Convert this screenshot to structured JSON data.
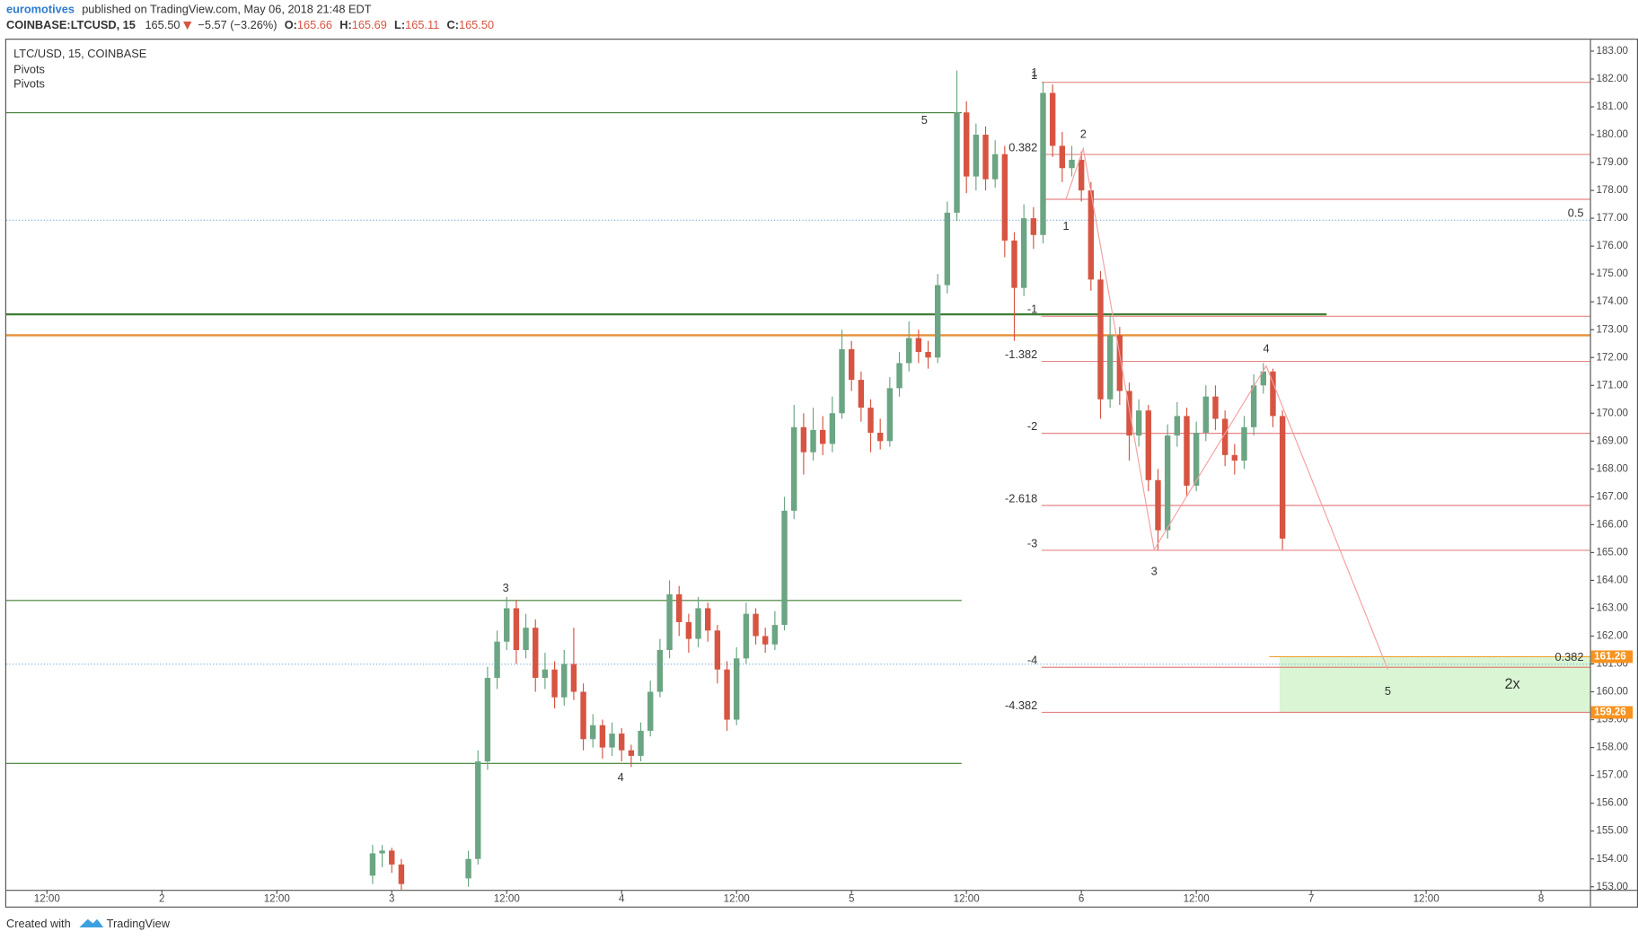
{
  "header": {
    "publisher": "euromotives",
    "published": "published on TradingView.com, May 06, 2018 21:48 EDT",
    "symbol": "COINBASE:LTCUSD, 15",
    "last": "165.50",
    "change": "−5.57 (−3.26%)",
    "open_label": "O:",
    "open": "165.66",
    "high_label": "H:",
    "high": "165.69",
    "low_label": "L:",
    "low": "165.11",
    "close_label": "C:",
    "close": "165.50"
  },
  "legend": {
    "title": "LTC/USD, 15, COINBASE",
    "studies": [
      "Pivots",
      "Pivots"
    ]
  },
  "footer": {
    "created": "Created with",
    "brand": "TradingView"
  },
  "chart_data": {
    "type": "candlestick",
    "up_color": "#6ba583",
    "down_color": "#d75442",
    "x": [
      22,
      23,
      24,
      25,
      32,
      33,
      34,
      35,
      36,
      37,
      38,
      39,
      40,
      41,
      42,
      43,
      44,
      45,
      46,
      47,
      48,
      49,
      50,
      51,
      52,
      53,
      54,
      55,
      56,
      57,
      58,
      59,
      60,
      61,
      62,
      63,
      64,
      65,
      66,
      67,
      68,
      69,
      70,
      71,
      72,
      73,
      74,
      75,
      76,
      77,
      78,
      79,
      80,
      81,
      82,
      83,
      84,
      85,
      86,
      87,
      88,
      89,
      90,
      91,
      92,
      93,
      94,
      95,
      96,
      97,
      98,
      99,
      100,
      101,
      102,
      103,
      104,
      105,
      106,
      107,
      108,
      109,
      110,
      111,
      112,
      113,
      114,
      115,
      116,
      117
    ],
    "open": [
      153.4,
      154.2,
      154.3,
      153.8,
      153.3,
      154.0,
      157.5,
      160.5,
      161.8,
      163.0,
      161.5,
      162.3,
      160.5,
      160.8,
      159.8,
      161.0,
      160.0,
      158.3,
      158.8,
      158.0,
      158.5,
      157.9,
      157.7,
      158.6,
      160.0,
      161.5,
      163.5,
      162.5,
      161.9,
      163.0,
      162.2,
      160.8,
      159.0,
      161.2,
      162.8,
      162.0,
      161.7,
      162.4,
      166.5,
      169.5,
      168.6,
      169.4,
      168.9,
      170.0,
      172.3,
      171.2,
      170.2,
      169.3,
      169.0,
      170.9,
      171.8,
      172.7,
      172.2,
      172.0,
      174.6,
      177.2,
      180.8,
      178.5,
      180.0,
      178.4,
      179.3,
      176.2,
      174.5,
      177.0,
      176.4,
      181.5,
      179.6,
      178.8,
      179.1,
      178.0,
      174.8,
      170.5,
      172.8,
      170.8,
      169.2,
      170.1,
      167.6,
      165.8,
      169.2,
      169.9,
      167.4,
      169.3,
      170.6,
      169.8,
      168.5,
      168.3,
      169.5,
      171.0,
      171.5,
      169.9
    ],
    "high": [
      154.5,
      154.5,
      154.4,
      154.0,
      154.3,
      157.9,
      160.9,
      162.2,
      163.4,
      163.3,
      162.8,
      162.6,
      161.4,
      161.1,
      161.5,
      162.3,
      160.3,
      159.2,
      159.0,
      158.9,
      158.7,
      158.1,
      158.9,
      160.4,
      161.9,
      164.0,
      163.8,
      162.8,
      163.4,
      163.2,
      162.4,
      161.1,
      161.6,
      163.2,
      163.0,
      162.3,
      162.9,
      167.0,
      170.3,
      170.0,
      170.2,
      169.9,
      170.6,
      173.0,
      172.6,
      171.5,
      170.5,
      169.8,
      171.3,
      172.2,
      173.3,
      173.0,
      172.6,
      175.0,
      177.6,
      182.3,
      181.2,
      180.4,
      180.3,
      179.8,
      179.6,
      176.5,
      177.5,
      177.4,
      181.9,
      181.8,
      180.1,
      179.6,
      179.4,
      178.3,
      175.1,
      173.5,
      173.1,
      171.1,
      170.5,
      170.3,
      168.0,
      169.6,
      170.4,
      170.2,
      169.7,
      171.0,
      171.0,
      170.1,
      168.9,
      169.9,
      171.4,
      171.8,
      171.6,
      170.1
    ],
    "low": [
      153.1,
      153.7,
      153.5,
      152.9,
      153.0,
      153.8,
      157.2,
      160.1,
      161.5,
      161.0,
      161.2,
      160.0,
      160.1,
      159.4,
      159.5,
      159.7,
      157.9,
      158.0,
      157.6,
      157.7,
      157.5,
      157.3,
      157.5,
      158.4,
      159.8,
      161.2,
      162.0,
      161.4,
      161.6,
      161.8,
      160.3,
      158.6,
      158.8,
      161.0,
      161.7,
      161.4,
      161.5,
      162.2,
      166.2,
      167.8,
      168.3,
      168.5,
      168.6,
      169.8,
      170.8,
      169.7,
      168.6,
      168.7,
      168.8,
      170.6,
      171.5,
      171.8,
      171.6,
      171.8,
      174.3,
      176.9,
      177.9,
      178.0,
      178.0,
      178.1,
      175.6,
      172.6,
      174.2,
      175.9,
      176.1,
      179.2,
      178.3,
      178.5,
      177.6,
      174.4,
      169.8,
      170.2,
      170.3,
      168.3,
      168.8,
      167.2,
      165.1,
      165.5,
      168.8,
      167.0,
      167.2,
      169.0,
      169.4,
      168.1,
      167.8,
      168.0,
      169.2,
      170.7,
      169.5,
      165.1
    ],
    "close": [
      154.2,
      154.3,
      153.8,
      153.1,
      154.0,
      157.5,
      160.5,
      161.8,
      163.0,
      161.5,
      162.3,
      160.5,
      160.8,
      159.8,
      161.0,
      160.0,
      158.3,
      158.8,
      158.0,
      158.5,
      157.9,
      157.7,
      158.6,
      160.0,
      161.5,
      163.5,
      162.5,
      161.9,
      163.0,
      162.2,
      160.8,
      159.0,
      161.2,
      162.8,
      162.0,
      161.7,
      162.4,
      166.5,
      169.5,
      168.6,
      169.4,
      168.9,
      170.0,
      172.3,
      171.2,
      170.2,
      169.3,
      169.0,
      170.9,
      171.8,
      172.7,
      172.2,
      172.0,
      174.6,
      177.2,
      180.8,
      178.5,
      180.0,
      178.4,
      179.3,
      176.2,
      174.5,
      177.0,
      176.4,
      181.5,
      179.6,
      178.8,
      179.1,
      178.0,
      174.8,
      170.5,
      172.8,
      170.8,
      169.2,
      170.1,
      167.6,
      165.8,
      169.2,
      169.9,
      167.4,
      169.3,
      170.6,
      169.8,
      168.5,
      168.3,
      169.5,
      171.0,
      171.5,
      169.9,
      165.5
    ],
    "xlim": [
      -16.25,
      149.1
    ],
    "xticks": [
      {
        "value": -12,
        "label": "12:00"
      },
      {
        "value": 0,
        "label": "2"
      },
      {
        "value": 12,
        "label": "12:00"
      },
      {
        "value": 24,
        "label": "3"
      },
      {
        "value": 36,
        "label": "12:00"
      },
      {
        "value": 48,
        "label": "4"
      },
      {
        "value": 60,
        "label": "12:00"
      },
      {
        "value": 72,
        "label": "5"
      },
      {
        "value": 84,
        "label": "12:00"
      },
      {
        "value": 96,
        "label": "6"
      },
      {
        "value": 108,
        "label": "12:00"
      },
      {
        "value": 120,
        "label": "7"
      },
      {
        "value": 132,
        "label": "12:00"
      },
      {
        "value": 144,
        "label": "8"
      }
    ],
    "ylim": [
      152.89,
      183.41
    ],
    "yticks": [
      {
        "value": 153,
        "label": "153.00"
      },
      {
        "value": 154,
        "label": "154.00"
      },
      {
        "value": 155,
        "label": "155.00"
      },
      {
        "value": 156,
        "label": "156.00"
      },
      {
        "value": 157,
        "label": "157.00"
      },
      {
        "value": 158,
        "label": "158.00"
      },
      {
        "value": 159,
        "label": "159.00"
      },
      {
        "value": 160,
        "label": "160.00"
      },
      {
        "value": 161,
        "label": "161.00"
      },
      {
        "value": 162,
        "label": "162.00"
      },
      {
        "value": 163,
        "label": "163.00"
      },
      {
        "value": 164,
        "label": "164.00"
      },
      {
        "value": 165,
        "label": "165.00"
      },
      {
        "value": 166,
        "label": "166.00"
      },
      {
        "value": 167,
        "label": "167.00"
      },
      {
        "value": 168,
        "label": "168.00"
      },
      {
        "value": 169,
        "label": "169.00"
      },
      {
        "value": 170,
        "label": "170.00"
      },
      {
        "value": 171,
        "label": "171.00"
      },
      {
        "value": 172,
        "label": "172.00"
      },
      {
        "value": 173,
        "label": "173.00"
      },
      {
        "value": 174,
        "label": "174.00"
      },
      {
        "value": 175,
        "label": "175.00"
      },
      {
        "value": 176,
        "label": "176.00"
      },
      {
        "value": 177,
        "label": "177.00"
      },
      {
        "value": 178,
        "label": "178.00"
      },
      {
        "value": 179,
        "label": "179.00"
      },
      {
        "value": 180,
        "label": "180.00"
      },
      {
        "value": 181,
        "label": "181.00"
      },
      {
        "value": 182,
        "label": "182.00"
      },
      {
        "value": 183,
        "label": "183.00"
      }
    ],
    "levels": [
      {
        "value": 180.79,
        "to": 83.5,
        "color": "#3f7d33",
        "width": 1
      },
      {
        "value": 176.93,
        "color": "#6fa8dc",
        "width": 1,
        "dash": true,
        "label": "0.5"
      },
      {
        "value": 173.55,
        "to": 121.6,
        "color": "#3f7d33",
        "width": 2
      },
      {
        "value": 172.8,
        "color": "#e69138",
        "width": 2
      },
      {
        "value": 163.28,
        "to": 83.5,
        "color": "#3f7d33",
        "width": 1
      },
      {
        "value": 160.99,
        "color": "#6fa8dc",
        "width": 1,
        "dash": true,
        "label": "0.382"
      },
      {
        "value": 157.43,
        "to": 83.5,
        "color": "#3f7d33",
        "width": 1
      }
    ],
    "fib": {
      "color": "#e06666",
      "from": 91.85,
      "levels": [
        {
          "value": 181.88,
          "label": "1"
        },
        {
          "value": 179.29,
          "label": "0.382"
        },
        {
          "value": 177.68
        },
        {
          "value": 173.48,
          "label": "-1"
        },
        {
          "value": 171.86,
          "label": "-1.382"
        },
        {
          "value": 169.28,
          "label": "-2"
        },
        {
          "value": 166.69,
          "label": "-2.618"
        },
        {
          "value": 165.08,
          "label": "-3"
        },
        {
          "value": 160.88,
          "label": "-4"
        },
        {
          "value": 159.26,
          "label": "-4.382"
        }
      ]
    },
    "wave": {
      "color": "#f4a0a0",
      "x": [
        94.4,
        96.2,
        103.6,
        115.3,
        128.0
      ],
      "y": [
        177.7,
        179.5,
        165.1,
        171.7,
        160.8
      ]
    },
    "annotations": [
      {
        "text": "5",
        "x": 79.6,
        "y": 180.5,
        "color": "#6cb560"
      },
      {
        "text": "3",
        "x": 35.9,
        "y": 163.7,
        "color": "#6cb560"
      },
      {
        "text": "4",
        "x": 47.9,
        "y": 156.9,
        "color": "#6cb560"
      },
      {
        "text": "1",
        "x": 91.1,
        "y": 182.2,
        "color": "#e06666"
      },
      {
        "text": "2",
        "x": 96.2,
        "y": 180.0,
        "color": "#e06666"
      },
      {
        "text": "1",
        "x": 94.4,
        "y": 176.7,
        "color": "#e06666"
      },
      {
        "text": "3",
        "x": 103.6,
        "y": 164.3,
        "color": "#e06666"
      },
      {
        "text": "4",
        "x": 115.3,
        "y": 172.3,
        "color": "#e06666"
      },
      {
        "text": "5",
        "x": 128.0,
        "y": 160.0,
        "color": "#e06666"
      }
    ],
    "target": {
      "x": [
        116.7,
        149.1
      ],
      "y": [
        159.26,
        161.26
      ],
      "label": "2x",
      "color": "#d9f5d3",
      "edge_color": "#f0a030"
    },
    "price_tags": [
      {
        "value": 161.26,
        "label": "161.26"
      },
      {
        "value": 159.26,
        "label": "159.26"
      }
    ],
    "price_tag_color": "#f7931e"
  }
}
